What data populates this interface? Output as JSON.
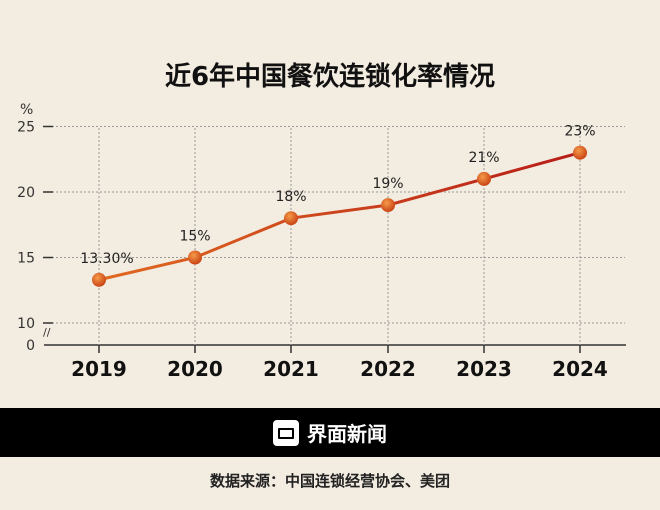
{
  "chart_data": {
    "type": "line",
    "title": "近6年中国餐饮连锁化率情况",
    "ylabel": "%",
    "categories": [
      "2019",
      "2020",
      "2021",
      "2022",
      "2023",
      "2024"
    ],
    "values": [
      13.3,
      15,
      18,
      19,
      21,
      23
    ],
    "data_labels": [
      "13.30%",
      "15%",
      "18%",
      "19%",
      "21%",
      "23%"
    ],
    "yticks": [
      0,
      10,
      15,
      20,
      25
    ],
    "ylim": [
      10,
      25
    ],
    "axis_break": true,
    "grid": true,
    "line_colors": [
      "#e06a20",
      "#b71c18"
    ]
  },
  "brand": "界面新闻",
  "source": "数据来源：中国连锁经营协会、美团"
}
